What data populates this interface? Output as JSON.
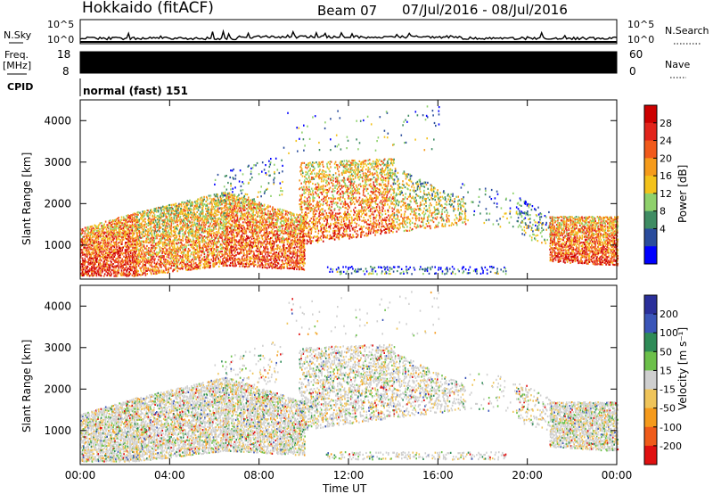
{
  "header": {
    "radar": "Hokkaido (fitACF)",
    "beam": "Beam 07",
    "date_range": "07/Jul/2016 - 08/Jul/2016"
  },
  "noise_panel": {
    "left_label": "N.Sky",
    "right_label": "N.Search",
    "ticks": [
      "10^5",
      "10^0"
    ]
  },
  "freq_panel": {
    "left_label_1": "Freq.",
    "left_label_2": "[MHz]",
    "left_ticks": [
      "18",
      "8"
    ],
    "right_label": "Nave",
    "right_ticks": [
      "60",
      "0"
    ]
  },
  "cpid_panel": {
    "label": "CPID",
    "value": "normal (fast) 151"
  },
  "colors": {
    "power": [
      "#0000ff",
      "#2a4c9c",
      "#3f8c63",
      "#8fd16c",
      "#f3c21b",
      "#f59b1b",
      "#f15a1b",
      "#e2241b",
      "#cc0000"
    ],
    "velocity": [
      "#2a2f9a",
      "#3a55b8",
      "#2e8b57",
      "#6cc04a",
      "#cfcfcf",
      "#efc45a",
      "#f59a1c",
      "#ef5b1a",
      "#e01010"
    ],
    "black": "#000000"
  },
  "chart_data": [
    {
      "type": "heatmap",
      "title": "Power",
      "ylabel": "Slant Range [km]",
      "xlabel": "",
      "x_ticks": [
        "00:00",
        "04:00",
        "08:00",
        "12:00",
        "16:00",
        "20:00",
        "00:00"
      ],
      "y_ticks": [
        "1000",
        "2000",
        "3000",
        "4000"
      ],
      "ylim": [
        180,
        4500
      ],
      "colorbar": {
        "label": "Power [dB]",
        "ticks": [
          "28",
          "24",
          "20",
          "16",
          "12",
          "8",
          "4"
        ]
      }
    },
    {
      "type": "heatmap",
      "title": "Velocity",
      "ylabel": "Slant Range [km]",
      "xlabel": "Time UT",
      "x_ticks": [
        "00:00",
        "04:00",
        "08:00",
        "12:00",
        "16:00",
        "20:00",
        "00:00"
      ],
      "y_ticks": [
        "1000",
        "2000",
        "3000",
        "4000"
      ],
      "ylim": [
        180,
        4500
      ],
      "colorbar": {
        "label": "Velocity [m s⁻¹]",
        "ticks": [
          "200",
          "100",
          "50",
          "15",
          "-15",
          "-50",
          "-100",
          "-200"
        ]
      }
    }
  ]
}
